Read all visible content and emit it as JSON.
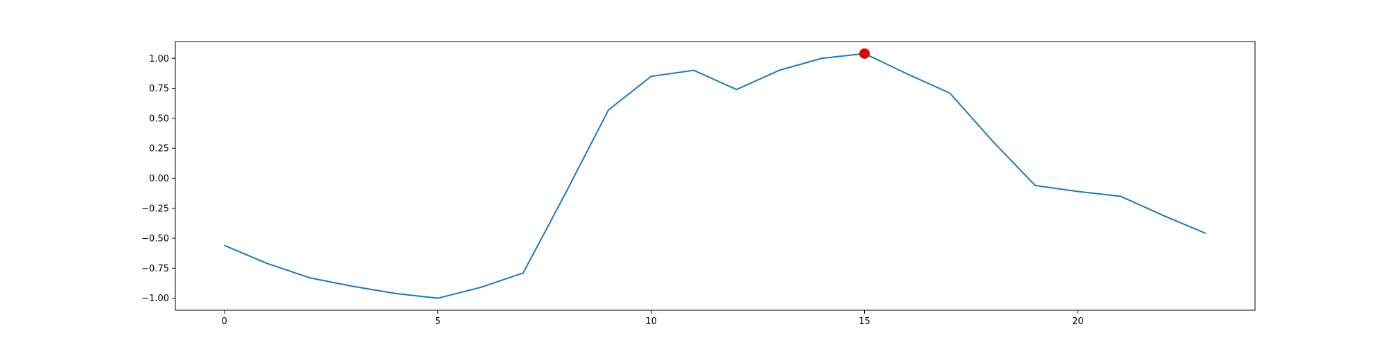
{
  "chart_data": {
    "type": "line",
    "title": "",
    "xlabel": "",
    "ylabel": "",
    "xlim": [
      -1.15,
      24.15
    ],
    "ylim": [
      -1.1,
      1.14
    ],
    "grid": false,
    "x_ticks": [
      {
        "value": 0,
        "label": "0"
      },
      {
        "value": 5,
        "label": "5"
      },
      {
        "value": 10,
        "label": "10"
      },
      {
        "value": 15,
        "label": "15"
      },
      {
        "value": 20,
        "label": "20"
      }
    ],
    "y_ticks": [
      {
        "value": 1.0,
        "label": "1.00"
      },
      {
        "value": 0.75,
        "label": "0.75"
      },
      {
        "value": 0.5,
        "label": "0.50"
      },
      {
        "value": 0.25,
        "label": "0.25"
      },
      {
        "value": 0.0,
        "label": "0.00"
      },
      {
        "value": -0.25,
        "label": "−0.25"
      },
      {
        "value": -0.5,
        "label": "−0.50"
      },
      {
        "value": -0.75,
        "label": "−0.75"
      },
      {
        "value": -1.0,
        "label": "−1.00"
      }
    ],
    "series": [
      {
        "color": "#1f77b4",
        "x": [
          0,
          1,
          2,
          3,
          4,
          5,
          6,
          7,
          8,
          9,
          10,
          11,
          12,
          13,
          14,
          15,
          16,
          17,
          18,
          19,
          20,
          21,
          22,
          23
        ],
        "y": [
          -0.56,
          -0.71,
          -0.83,
          -0.9,
          -0.96,
          -1.0,
          -0.91,
          -0.79,
          -0.12,
          0.57,
          0.85,
          0.9,
          0.74,
          0.9,
          1.0,
          1.04,
          0.87,
          0.71,
          0.31,
          -0.06,
          -0.11,
          -0.15,
          -0.31,
          -0.46
        ]
      }
    ],
    "highlight_point": {
      "x": 15,
      "y": 1.04,
      "color": "#e00000"
    }
  }
}
